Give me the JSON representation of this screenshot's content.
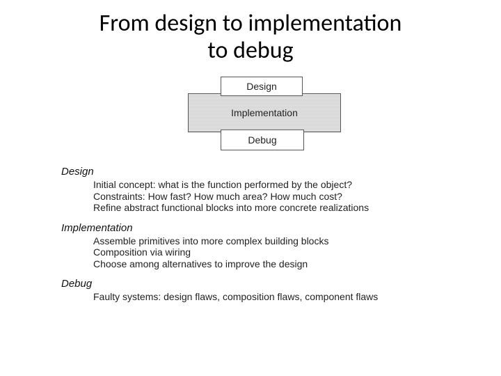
{
  "title_line1": "From design to implementation",
  "title_line2": "to debug",
  "diagram": {
    "design_label": "Design",
    "implementation_label": "Implementation",
    "debug_label": "Debug",
    "colors": {
      "box_border": "#555555",
      "impl_bg_dark": "#d0d0d0",
      "impl_bg_light": "#e6e6e6",
      "plain_bg": "#ffffff"
    }
  },
  "sections": {
    "design": {
      "heading": "Design",
      "lines": [
        "Initial concept: what is the function performed by the object?",
        "Constraints: How fast?  How much area?  How much cost?",
        "Refine abstract functional blocks into more concrete realizations"
      ]
    },
    "implementation": {
      "heading": "Implementation",
      "lines": [
        "Assemble primitives into more complex building blocks",
        "Composition via wiring",
        "Choose among alternatives to improve the design"
      ]
    },
    "debug": {
      "heading": "Debug",
      "lines": [
        "Faulty systems: design flaws, composition flaws, component flaws"
      ]
    }
  },
  "typography": {
    "title_fontsize": 34,
    "heading_fontsize": 15,
    "body_fontsize": 14,
    "diagram_label_fontsize": 14
  }
}
